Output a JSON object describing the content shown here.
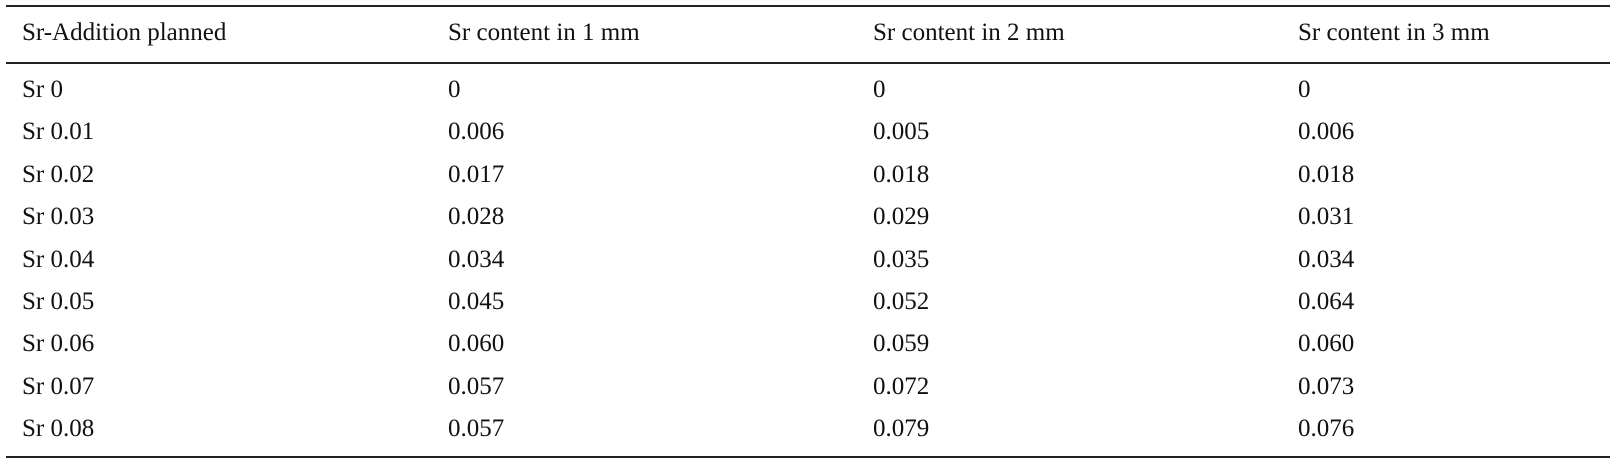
{
  "table": {
    "header": [
      "Sr-Addition planned",
      "Sr content in 1 mm",
      "Sr content in 2 mm",
      "Sr content in 3 mm"
    ],
    "rows": [
      [
        "Sr 0",
        "0",
        "0",
        "0"
      ],
      [
        "Sr 0.01",
        "0.006",
        "0.005",
        "0.006"
      ],
      [
        "Sr 0.02",
        "0.017",
        "0.018",
        "0.018"
      ],
      [
        "Sr 0.03",
        "0.028",
        "0.029",
        "0.031"
      ],
      [
        "Sr 0.04",
        "0.034",
        "0.035",
        "0.034"
      ],
      [
        "Sr 0.05",
        "0.045",
        "0.052",
        "0.064"
      ],
      [
        "Sr 0.06",
        "0.060",
        "0.059",
        "0.060"
      ],
      [
        "Sr 0.07",
        "0.057",
        "0.072",
        "0.073"
      ],
      [
        "Sr 0.08",
        "0.057",
        "0.079",
        "0.076"
      ]
    ]
  }
}
